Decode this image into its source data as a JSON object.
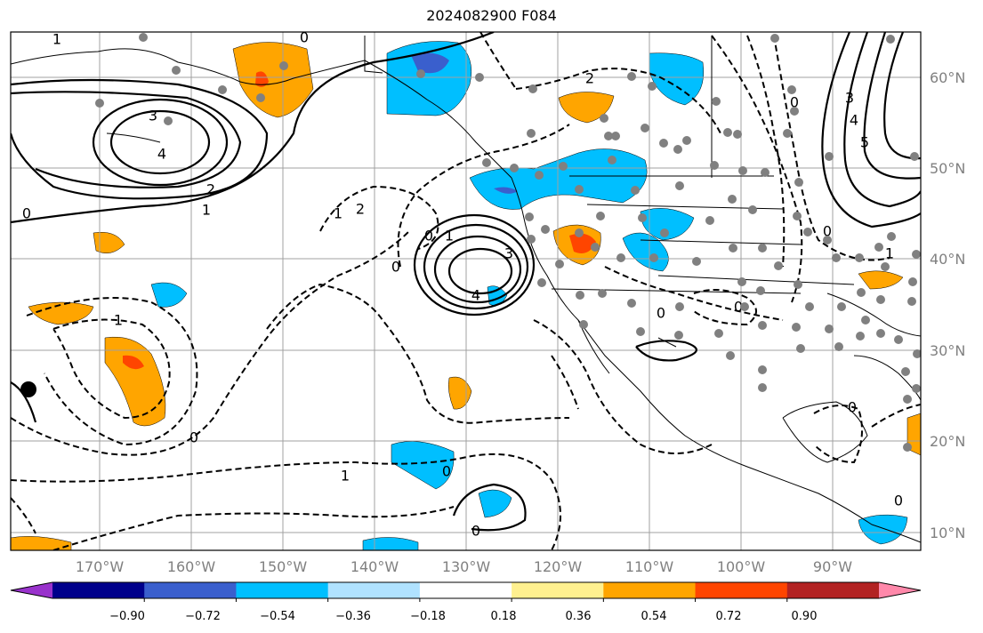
{
  "title": "2024082900 F084",
  "lon_labels": [
    "170°W",
    "160°W",
    "150°W",
    "140°W",
    "130°W",
    "120°W",
    "110°W",
    "100°W",
    "90°W"
  ],
  "lat_labels": [
    "60°N",
    "50°N",
    "40°N",
    "30°N",
    "20°N",
    "10°N"
  ],
  "colorbar": {
    "colors": [
      "#9932cc",
      "#00008b",
      "#3a5fcd",
      "#00bfff",
      "#b0e2ff",
      "#ffffff",
      "#fff08f",
      "#ffa500",
      "#ff4500",
      "#b22222",
      "#ff88aa"
    ],
    "tick_labels": [
      "−0.90",
      "−0.72",
      "−0.54",
      "−0.36",
      "−0.18",
      "0.18",
      "0.36",
      "0.54",
      "0.72",
      "0.90"
    ]
  },
  "contour_labels": [
    "1",
    "3",
    "4",
    "2",
    "1",
    "0",
    "0",
    "1",
    "2",
    "0",
    "4",
    "3",
    "1",
    "0",
    "0",
    "1",
    "1",
    "0",
    "0",
    "2",
    "0",
    "4",
    "3",
    "5",
    "0",
    "1",
    "0",
    "0",
    "0",
    "0"
  ]
}
